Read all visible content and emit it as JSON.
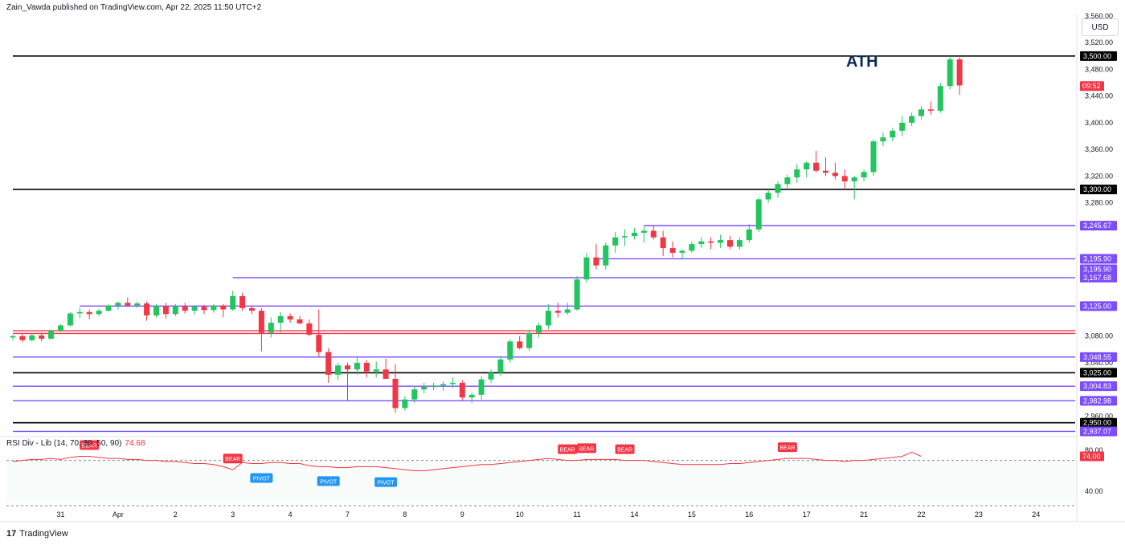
{
  "header": {
    "publisher": "Zain_Vawda published on TradingView.com, Apr 22, 2025 11:50 UTC+2"
  },
  "currency_button": "USD",
  "annotation_ath": "ATH",
  "branding": {
    "logo_mark": "17",
    "logo_text": "TradingView"
  },
  "rsi_title": {
    "label": "RSI Div - Lib (14, 70, 30, 50, 90)",
    "value": "74.68"
  },
  "colors": {
    "up": "#22c55e",
    "down": "#f23645",
    "resistance_black": "#000000",
    "level_purple": "#7c4dff",
    "level_red": "#f23645",
    "axis_text": "#131722",
    "rsi_line_bull": "#f23645",
    "rsi_line_bear": "#555555",
    "bear_tag": "#f23645",
    "pivot_tag": "#2196f3"
  },
  "chart_data": [
    {
      "type": "candlestick",
      "title": "",
      "ylim": [
        2928,
        3560
      ],
      "y_ticks": [
        "3,560.00",
        "3,520.00",
        "3,480.00",
        "3,440.00",
        "3,400.00",
        "3,360.00",
        "3,320.00",
        "3,280.00",
        "3,080.00",
        "3,040.00",
        "2,960.00"
      ],
      "x_ticks": [
        {
          "label": "31",
          "i": 5
        },
        {
          "label": "Apr",
          "i": 11
        },
        {
          "label": "2",
          "i": 17
        },
        {
          "label": "3",
          "i": 23
        },
        {
          "label": "4",
          "i": 29
        },
        {
          "label": "7",
          "i": 35
        },
        {
          "label": "8",
          "i": 41
        },
        {
          "label": "9",
          "i": 47
        },
        {
          "label": "10",
          "i": 53
        },
        {
          "label": "11",
          "i": 59
        },
        {
          "label": "14",
          "i": 65
        },
        {
          "label": "15",
          "i": 71
        },
        {
          "label": "16",
          "i": 77
        },
        {
          "label": "17",
          "i": 83
        },
        {
          "label": "21",
          "i": 89
        },
        {
          "label": "22",
          "i": 95
        },
        {
          "label": "23",
          "i": 101
        },
        {
          "label": "24",
          "i": 107
        }
      ],
      "levels": [
        {
          "price": 3500.0,
          "label": "3,500.00",
          "color": "#000000",
          "from": 0,
          "width": 1.6
        },
        {
          "price": 3300.0,
          "label": "3,300.00",
          "color": "#000000",
          "from": 0,
          "width": 1.6
        },
        {
          "price": 3245.67,
          "label": "3,245.67",
          "color": "#7c4dff",
          "from": 66,
          "width": 1.4
        },
        {
          "price": 3195.9,
          "label": "3,195.90",
          "color": "#7c4dff",
          "from": 61,
          "width": 1.4
        },
        {
          "price": 3195.9,
          "label": "3,195.90",
          "color": "#7c4dff",
          "from": -99,
          "width": 0,
          "tagOnly": true
        },
        {
          "price": 3167.68,
          "label": "3,167.68",
          "color": "#7c4dff",
          "from": 23,
          "width": 1.4
        },
        {
          "price": 3125.0,
          "label": "3,125.00",
          "color": "#7c4dff",
          "from": 7,
          "width": 1.4
        },
        {
          "price": 3088.0,
          "label": "",
          "color": "#f23645",
          "from": 0,
          "width": 1.4
        },
        {
          "price": 3084.0,
          "label": "",
          "color": "#f23645",
          "from": 0,
          "width": 1.4
        },
        {
          "price": 3048.55,
          "label": "3,048.55",
          "color": "#7c4dff",
          "from": 0,
          "width": 1.4
        },
        {
          "price": 3025.0,
          "label": "3,025.00",
          "color": "#000000",
          "from": 0,
          "width": 1.6
        },
        {
          "price": 3004.83,
          "label": "3,004.83",
          "color": "#7c4dff",
          "from": 0,
          "width": 1.4
        },
        {
          "price": 2982.98,
          "label": "2,982.98",
          "color": "#7c4dff",
          "from": 0,
          "width": 1.4
        },
        {
          "price": 2950.0,
          "label": "2,950.00",
          "color": "#000000",
          "from": 0,
          "width": 1.6
        },
        {
          "price": 2937.07,
          "label": "2,937.07",
          "color": "#7c4dff",
          "from": 0,
          "width": 1.4
        }
      ],
      "last_price_tag": {
        "label": "09:52",
        "price": 3455
      },
      "ohlc": [
        [
          3078,
          3082,
          3074,
          3080
        ],
        [
          3080,
          3083,
          3071,
          3074
        ],
        [
          3074,
          3083,
          3072,
          3081
        ],
        [
          3081,
          3085,
          3072,
          3076
        ],
        [
          3076,
          3090,
          3075,
          3088
        ],
        [
          3088,
          3098,
          3086,
          3096
        ],
        [
          3096,
          3116,
          3094,
          3114
        ],
        [
          3114,
          3122,
          3107,
          3116
        ],
        [
          3116,
          3120,
          3105,
          3113
        ],
        [
          3113,
          3121,
          3110,
          3118
        ],
        [
          3118,
          3128,
          3117,
          3126
        ],
        [
          3126,
          3132,
          3120,
          3130
        ],
        [
          3130,
          3138,
          3124,
          3126
        ],
        [
          3126,
          3132,
          3122,
          3129
        ],
        [
          3129,
          3132,
          3103,
          3111
        ],
        [
          3111,
          3128,
          3108,
          3125
        ],
        [
          3125,
          3130,
          3106,
          3113
        ],
        [
          3113,
          3128,
          3110,
          3125
        ],
        [
          3125,
          3130,
          3114,
          3118
        ],
        [
          3118,
          3126,
          3112,
          3124
        ],
        [
          3124,
          3127,
          3113,
          3119
        ],
        [
          3119,
          3128,
          3115,
          3126
        ],
        [
          3126,
          3128,
          3108,
          3120
        ],
        [
          3120,
          3148,
          3118,
          3140
        ],
        [
          3140,
          3145,
          3118,
          3122
        ],
        [
          3122,
          3126,
          3113,
          3118
        ],
        [
          3118,
          3122,
          3057,
          3085
        ],
        [
          3085,
          3108,
          3078,
          3100
        ],
        [
          3100,
          3116,
          3085,
          3110
        ],
        [
          3110,
          3114,
          3100,
          3105
        ],
        [
          3105,
          3110,
          3098,
          3099
        ],
        [
          3099,
          3105,
          3080,
          3082
        ],
        [
          3082,
          3120,
          3048,
          3056
        ],
        [
          3056,
          3062,
          3010,
          3022
        ],
        [
          3022,
          3040,
          3014,
          3036
        ],
        [
          3036,
          3040,
          2984,
          3030
        ],
        [
          3030,
          3050,
          3022,
          3040
        ],
        [
          3040,
          3044,
          3018,
          3027
        ],
        [
          3027,
          3042,
          3018,
          3030
        ],
        [
          3030,
          3046,
          3016,
          3016
        ],
        [
          3016,
          3038,
          2965,
          2972
        ],
        [
          2972,
          2990,
          2968,
          2985
        ],
        [
          2985,
          3005,
          2980,
          3000
        ],
        [
          3000,
          3010,
          2994,
          3004
        ],
        [
          3004,
          3010,
          2999,
          3006
        ],
        [
          3006,
          3012,
          2998,
          3008
        ],
        [
          3008,
          3018,
          3002,
          3010
        ],
        [
          3010,
          3014,
          2984,
          2988
        ],
        [
          2988,
          2995,
          2980,
          2992
        ],
        [
          2992,
          3020,
          2985,
          3015
        ],
        [
          3015,
          3030,
          3010,
          3025
        ],
        [
          3025,
          3050,
          3020,
          3045
        ],
        [
          3045,
          3075,
          3040,
          3072
        ],
        [
          3072,
          3080,
          3060,
          3062
        ],
        [
          3062,
          3090,
          3058,
          3085
        ],
        [
          3085,
          3100,
          3078,
          3096
        ],
        [
          3096,
          3128,
          3090,
          3118
        ],
        [
          3118,
          3130,
          3108,
          3115
        ],
        [
          3115,
          3130,
          3112,
          3120
        ],
        [
          3120,
          3170,
          3118,
          3165
        ],
        [
          3165,
          3205,
          3160,
          3198
        ],
        [
          3198,
          3218,
          3180,
          3186
        ],
        [
          3186,
          3220,
          3180,
          3216
        ],
        [
          3216,
          3236,
          3205,
          3228
        ],
        [
          3228,
          3240,
          3215,
          3230
        ],
        [
          3230,
          3242,
          3225,
          3235
        ],
        [
          3235,
          3245,
          3220,
          3238
        ],
        [
          3238,
          3246,
          3225,
          3228
        ],
        [
          3228,
          3238,
          3200,
          3212
        ],
        [
          3212,
          3222,
          3198,
          3205
        ],
        [
          3205,
          3210,
          3195,
          3208
        ],
        [
          3208,
          3222,
          3205,
          3218
        ],
        [
          3218,
          3228,
          3212,
          3222
        ],
        [
          3222,
          3228,
          3210,
          3220
        ],
        [
          3220,
          3232,
          3212,
          3224
        ],
        [
          3224,
          3230,
          3210,
          3214
        ],
        [
          3214,
          3228,
          3210,
          3224
        ],
        [
          3224,
          3248,
          3220,
          3240
        ],
        [
          3240,
          3288,
          3236,
          3285
        ],
        [
          3285,
          3300,
          3280,
          3295
        ],
        [
          3295,
          3312,
          3288,
          3308
        ],
        [
          3308,
          3322,
          3300,
          3318
        ],
        [
          3318,
          3338,
          3310,
          3330
        ],
        [
          3330,
          3342,
          3318,
          3340
        ],
        [
          3340,
          3358,
          3325,
          3328
        ],
        [
          3328,
          3348,
          3320,
          3325
        ],
        [
          3325,
          3340,
          3315,
          3320
        ],
        [
          3320,
          3330,
          3300,
          3312
        ],
        [
          3312,
          3320,
          3285,
          3318
        ],
        [
          3318,
          3330,
          3312,
          3326
        ],
        [
          3326,
          3375,
          3320,
          3372
        ],
        [
          3372,
          3385,
          3365,
          3378
        ],
        [
          3378,
          3392,
          3372,
          3388
        ],
        [
          3388,
          3410,
          3380,
          3400
        ],
        [
          3400,
          3415,
          3395,
          3410
        ],
        [
          3410,
          3425,
          3405,
          3420
        ],
        [
          3420,
          3432,
          3412,
          3418
        ],
        [
          3418,
          3460,
          3415,
          3455
        ],
        [
          3455,
          3500,
          3450,
          3495
        ],
        [
          3495,
          3500,
          3442,
          3456
        ]
      ]
    },
    {
      "type": "line",
      "title": "RSI Div - Lib (14, 70, 30, 50, 90)",
      "ylim": [
        30,
        90
      ],
      "y_ticks": [
        "80.00",
        "40.00"
      ],
      "values": [
        69,
        70,
        71,
        71,
        72,
        71,
        73,
        74,
        74,
        73,
        72,
        72,
        71,
        71,
        70,
        70,
        69,
        69,
        68,
        67,
        67,
        66,
        64,
        61,
        68,
        67,
        67,
        68,
        68,
        67,
        67,
        65,
        64,
        64,
        63,
        63,
        64,
        64,
        64,
        63,
        62,
        61,
        60,
        60,
        61,
        62,
        63,
        64,
        65,
        66,
        66,
        67,
        68,
        69,
        70,
        71,
        72,
        71,
        70,
        70,
        71,
        71,
        71,
        71,
        70,
        70,
        70,
        69,
        68,
        67,
        66,
        66,
        66,
        66,
        66,
        67,
        67,
        68,
        69,
        70,
        71,
        72,
        72,
        72,
        71,
        70,
        70,
        69,
        70,
        70,
        71,
        72,
        73,
        74,
        78,
        74
      ],
      "bear_tags": [
        "BEAR",
        "BEAR",
        "BEAR",
        "BEAR",
        "BEAR",
        "BEAR"
      ],
      "pivot_tags": [
        "PIVOT",
        "PIVOT",
        "PIVOT"
      ]
    }
  ]
}
